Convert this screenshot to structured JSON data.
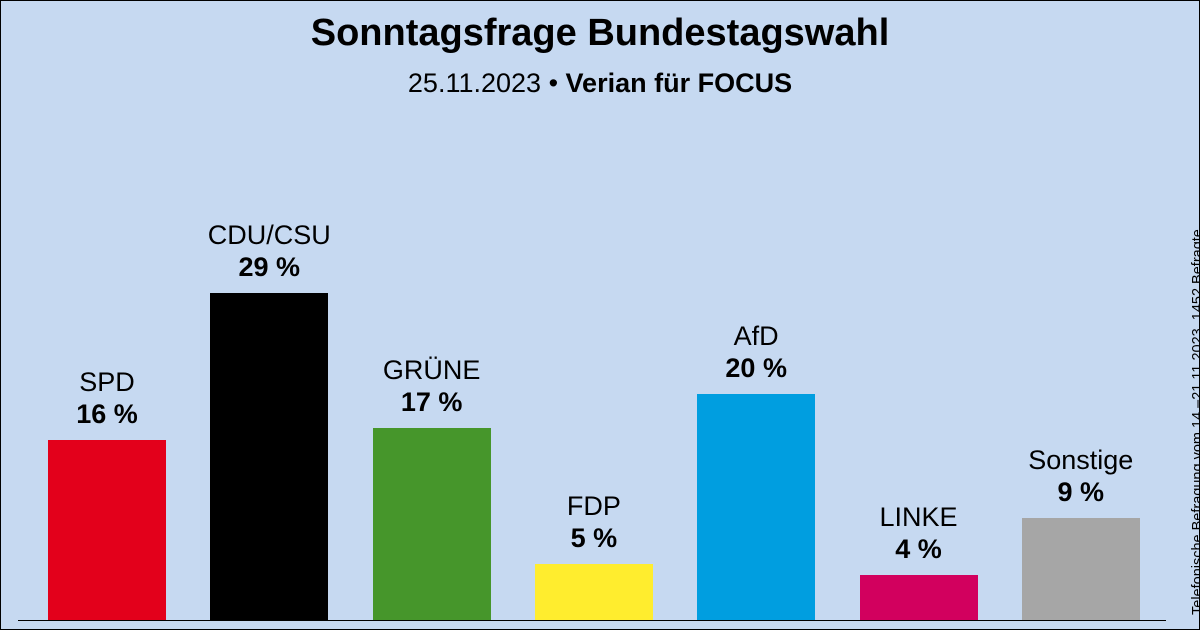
{
  "title": "Sonntagsfrage Bundestagswahl",
  "subtitle": {
    "date": "25.11.2023",
    "separator": "•",
    "source": "Verian für FOCUS"
  },
  "side_note": "Telefonische Befragung vom 14.–21.11.2023, 1452 Befragte",
  "chart_data": {
    "type": "bar",
    "categories": [
      "SPD",
      "CDU/CSU",
      "GRÜNE",
      "FDP",
      "AfD",
      "LINKE",
      "Sonstige"
    ],
    "values": [
      16,
      29,
      17,
      5,
      20,
      4,
      9
    ],
    "value_labels": [
      "16 %",
      "29 %",
      "17 %",
      "5 %",
      "20 %",
      "4 %",
      "9 %"
    ],
    "colors": [
      "#e3001b",
      "#000000",
      "#46962b",
      "#ffed2e",
      "#009ee0",
      "#d2005e",
      "#a6a6a6"
    ],
    "ylim": [
      0,
      30
    ],
    "grid": false,
    "legend": "none",
    "xlabel": "",
    "ylabel": ""
  }
}
